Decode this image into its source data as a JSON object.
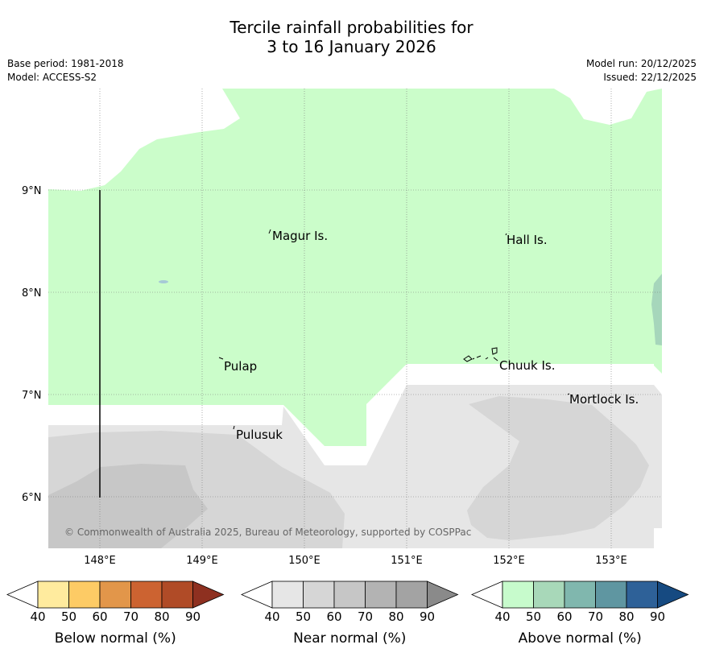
{
  "title": {
    "line1": "Tercile rainfall probabilities for",
    "line2": "3 to 16 January 2026"
  },
  "meta": {
    "base_period": "Base period: 1981-2018",
    "model": "Model: ACCESS-S2",
    "model_run": "Model run: 20/12/2025",
    "issued": "Issued: 22/12/2025"
  },
  "map": {
    "lat_labels": [
      "9°N",
      "8°N",
      "7°N",
      "6°N"
    ],
    "lon_labels": [
      "148°E",
      "149°E",
      "150°E",
      "151°E",
      "152°E",
      "153°E"
    ],
    "places": [
      "Magur Is.",
      "Hall Is.",
      "Pulap",
      "Chuuk Is.",
      "Mortlock Is.",
      "Pulusuk"
    ],
    "copyright": "© Commonwealth of Australia 2025, Bureau of Meteorology, supported by COSPPac",
    "colors": {
      "above_50": "#cbfdca",
      "above_60": "#a6d6bb",
      "near_40": "#e6e6e6",
      "near_50": "#d6d6d6",
      "near_60": "#c7c7c7"
    }
  },
  "legends": [
    {
      "title": "Below normal (%)",
      "ticks": [
        "40",
        "50",
        "60",
        "70",
        "80",
        "90"
      ],
      "colors": [
        "#ffeb9e",
        "#fdcb65",
        "#e2964a",
        "#cc6331",
        "#b04b27",
        "#8e3020"
      ]
    },
    {
      "title": "Near normal (%)",
      "ticks": [
        "40",
        "50",
        "60",
        "70",
        "80",
        "90"
      ],
      "colors": [
        "#e6e6e6",
        "#d6d6d6",
        "#c6c6c6",
        "#b3b3b3",
        "#a3a3a3",
        "#8a8a8a"
      ]
    },
    {
      "title": "Above normal (%)",
      "ticks": [
        "40",
        "50",
        "60",
        "70",
        "80",
        "90"
      ],
      "colors": [
        "#c7fbcc",
        "#a8d8b9",
        "#80b7ae",
        "#5f96a1",
        "#2e6198",
        "#164a81"
      ]
    }
  ]
}
